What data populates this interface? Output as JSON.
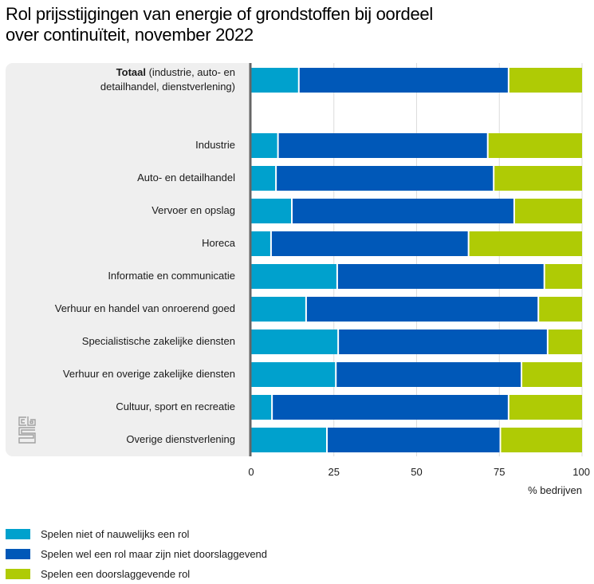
{
  "chart_data": {
    "type": "bar",
    "orientation": "horizontal",
    "stacked": true,
    "title": "Rol prijsstijgingen van energie of grondstoffen bij oordeel over continuïteit, november 2022",
    "title_lines": [
      "Rol prijsstijgingen van energie of grondstoffen bij oordeel",
      "over continuïteit, november 2022"
    ],
    "xlabel": "% bedrijven",
    "ylabel": "",
    "xlim": [
      0,
      100
    ],
    "xticks": [
      "0",
      "25",
      "50",
      "75",
      "100"
    ],
    "xtick_values": [
      0,
      25,
      50,
      75,
      100
    ],
    "grid": true,
    "legend_position": "bottom-left",
    "categories": [
      {
        "label_bold": "Totaal",
        "label": " (industrie, auto- en",
        "label_line2": "detailhandel, dienstverlening)",
        "gap_after": true
      },
      {
        "label": "Industrie"
      },
      {
        "label": "Auto- en detailhandel"
      },
      {
        "label": "Vervoer en opslag"
      },
      {
        "label": "Horeca"
      },
      {
        "label": "Informatie en communicatie"
      },
      {
        "label": "Verhuur en handel van onroerend goed"
      },
      {
        "label": "Specialistische zakelijke diensten"
      },
      {
        "label": "Verhuur en overige zakelijke diensten"
      },
      {
        "label": "Cultuur, sport en recreatie"
      },
      {
        "label": "Overige dienstverlening"
      }
    ],
    "series": [
      {
        "name": "Spelen niet of nauwelijks een rol",
        "color": "#00A1CD",
        "values": [
          14.4,
          8.1,
          7.5,
          12.3,
          6.0,
          26.0,
          16.6,
          26.3,
          25.6,
          6.3,
          22.9
        ]
      },
      {
        "name": "Spelen wel een rol maar zijn niet doorslaggevend",
        "color": "#0058B8",
        "values": [
          63.4,
          63.4,
          65.8,
          67.2,
          59.7,
          62.6,
          70.2,
          63.3,
          56.1,
          71.5,
          52.4
        ]
      },
      {
        "name": "Spelen een doorslaggevende rol",
        "color": "#AFCB05",
        "values": [
          22.2,
          28.5,
          26.7,
          20.5,
          34.3,
          11.4,
          13.2,
          10.4,
          18.3,
          22.2,
          24.7
        ]
      }
    ]
  },
  "branding": {
    "logo": "cbs-logo"
  }
}
